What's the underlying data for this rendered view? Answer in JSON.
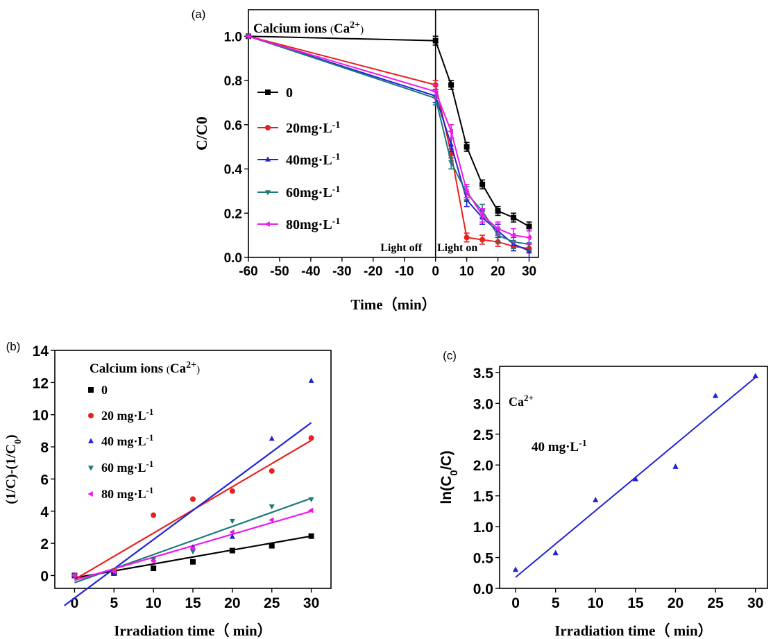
{
  "chart_data": [
    {
      "panel_label": "(a)",
      "type": "line",
      "title": "Calcium ions (Ca2+)",
      "xlabel": "Time（min）",
      "ylabel": "C/C0",
      "xlim": [
        -60,
        33
      ],
      "ylim": [
        0.0,
        1.12
      ],
      "xticks": [
        "-60",
        "-50",
        "-40",
        "-30",
        "-20",
        "-10",
        "0",
        "10",
        "20",
        "30"
      ],
      "yticks": [
        "0.0",
        "0.2",
        "0.4",
        "0.6",
        "0.8",
        "1.0"
      ],
      "annotations": [
        "Light off",
        "Light on"
      ],
      "x": [
        -60,
        0,
        5,
        10,
        15,
        20,
        25,
        30
      ],
      "series": [
        {
          "name": "0",
          "color": "#000000",
          "marker": "square",
          "values": [
            1.0,
            0.98,
            0.78,
            0.5,
            0.33,
            0.21,
            0.18,
            0.14
          ],
          "error": 0.02
        },
        {
          "name": "20mg·L-1",
          "color": "#e8201c",
          "marker": "circle",
          "values": [
            1.0,
            0.78,
            0.47,
            0.09,
            0.08,
            0.07,
            0.05,
            0.04
          ],
          "error": 0.02
        },
        {
          "name": "40mg·L-1",
          "color": "#1f23d6",
          "marker": "triangle-up",
          "values": [
            1.0,
            0.73,
            0.51,
            0.26,
            0.18,
            0.12,
            0.06,
            0.03
          ],
          "error": 0.03
        },
        {
          "name": "60mg·L-1",
          "color": "#1b7a78",
          "marker": "triangle-down",
          "values": [
            1.0,
            0.72,
            0.43,
            0.29,
            0.21,
            0.1,
            0.07,
            0.06
          ],
          "error": 0.03
        },
        {
          "name": "80mg·L-1",
          "color": "#ee18ee",
          "marker": "triangle-left",
          "values": [
            1.0,
            0.75,
            0.57,
            0.3,
            0.19,
            0.13,
            0.1,
            0.09
          ],
          "error": 0.03
        }
      ]
    },
    {
      "panel_label": "(b)",
      "type": "scatter",
      "title": "Calcium ions (Ca2+)",
      "xlabel": "Irradiation time（ min）",
      "ylabel": "(1/C)-(1/C0)",
      "xlim": [
        -2.5,
        32.5
      ],
      "ylim": [
        -0.8,
        14
      ],
      "xticks": [
        "0",
        "5",
        "10",
        "15",
        "20",
        "25",
        "30"
      ],
      "yticks": [
        "0",
        "2",
        "4",
        "6",
        "8",
        "10",
        "12",
        "14"
      ],
      "x": [
        0,
        5,
        10,
        15,
        20,
        25,
        30
      ],
      "series": [
        {
          "name": "0",
          "color": "#000000",
          "marker": "square",
          "values": [
            0.0,
            0.15,
            0.45,
            0.85,
            1.55,
            1.85,
            2.45
          ],
          "fit": [
            -0.15,
            2.45
          ]
        },
        {
          "name": "20 mg·L-1",
          "color": "#e8201c",
          "marker": "circle",
          "values": [
            0.0,
            0.3,
            3.75,
            4.75,
            5.25,
            6.5,
            8.55
          ],
          "fit": [
            -0.25,
            8.4
          ]
        },
        {
          "name": "40 mg·L-1",
          "color": "#1f23d6",
          "marker": "triangle-up",
          "values": [
            0.0,
            0.1,
            1.0,
            1.75,
            2.4,
            8.5,
            12.1
          ],
          "fit": [
            -1.4,
            9.5
          ]
        },
        {
          "name": "60 mg·L-1",
          "color": "#1b7a78",
          "marker": "triangle-down",
          "values": [
            0.0,
            0.3,
            1.0,
            1.5,
            3.4,
            4.3,
            4.75
          ],
          "fit": [
            -0.45,
            4.8
          ]
        },
        {
          "name": "80 mg·L-1",
          "color": "#ee18ee",
          "marker": "triangle-left",
          "values": [
            0.0,
            0.25,
            0.9,
            1.7,
            2.7,
            3.45,
            4.05
          ],
          "fit": [
            -0.3,
            4.0
          ]
        }
      ]
    },
    {
      "panel_label": "(c)",
      "type": "scatter",
      "title": "Ca2+",
      "annotation": "40 mg·L-1",
      "xlabel": "Irradiation time（ min）",
      "ylabel": "ln(C0/C)",
      "xlim": [
        -2,
        31.5
      ],
      "ylim": [
        0.0,
        3.6
      ],
      "xticks": [
        "0",
        "5",
        "10",
        "15",
        "20",
        "25",
        "30"
      ],
      "yticks": [
        "0.0",
        "0.5",
        "1.0",
        "1.5",
        "2.0",
        "2.5",
        "3.0",
        "3.5"
      ],
      "x": [
        0,
        5,
        10,
        15,
        20,
        25,
        30
      ],
      "series": [
        {
          "name": "40 mg·L-1",
          "color": "#1f23d6",
          "marker": "triangle-up",
          "values": [
            0.3,
            0.57,
            1.43,
            1.77,
            1.97,
            3.12,
            3.44
          ],
          "fit": [
            0.18,
            3.42
          ]
        }
      ]
    }
  ]
}
